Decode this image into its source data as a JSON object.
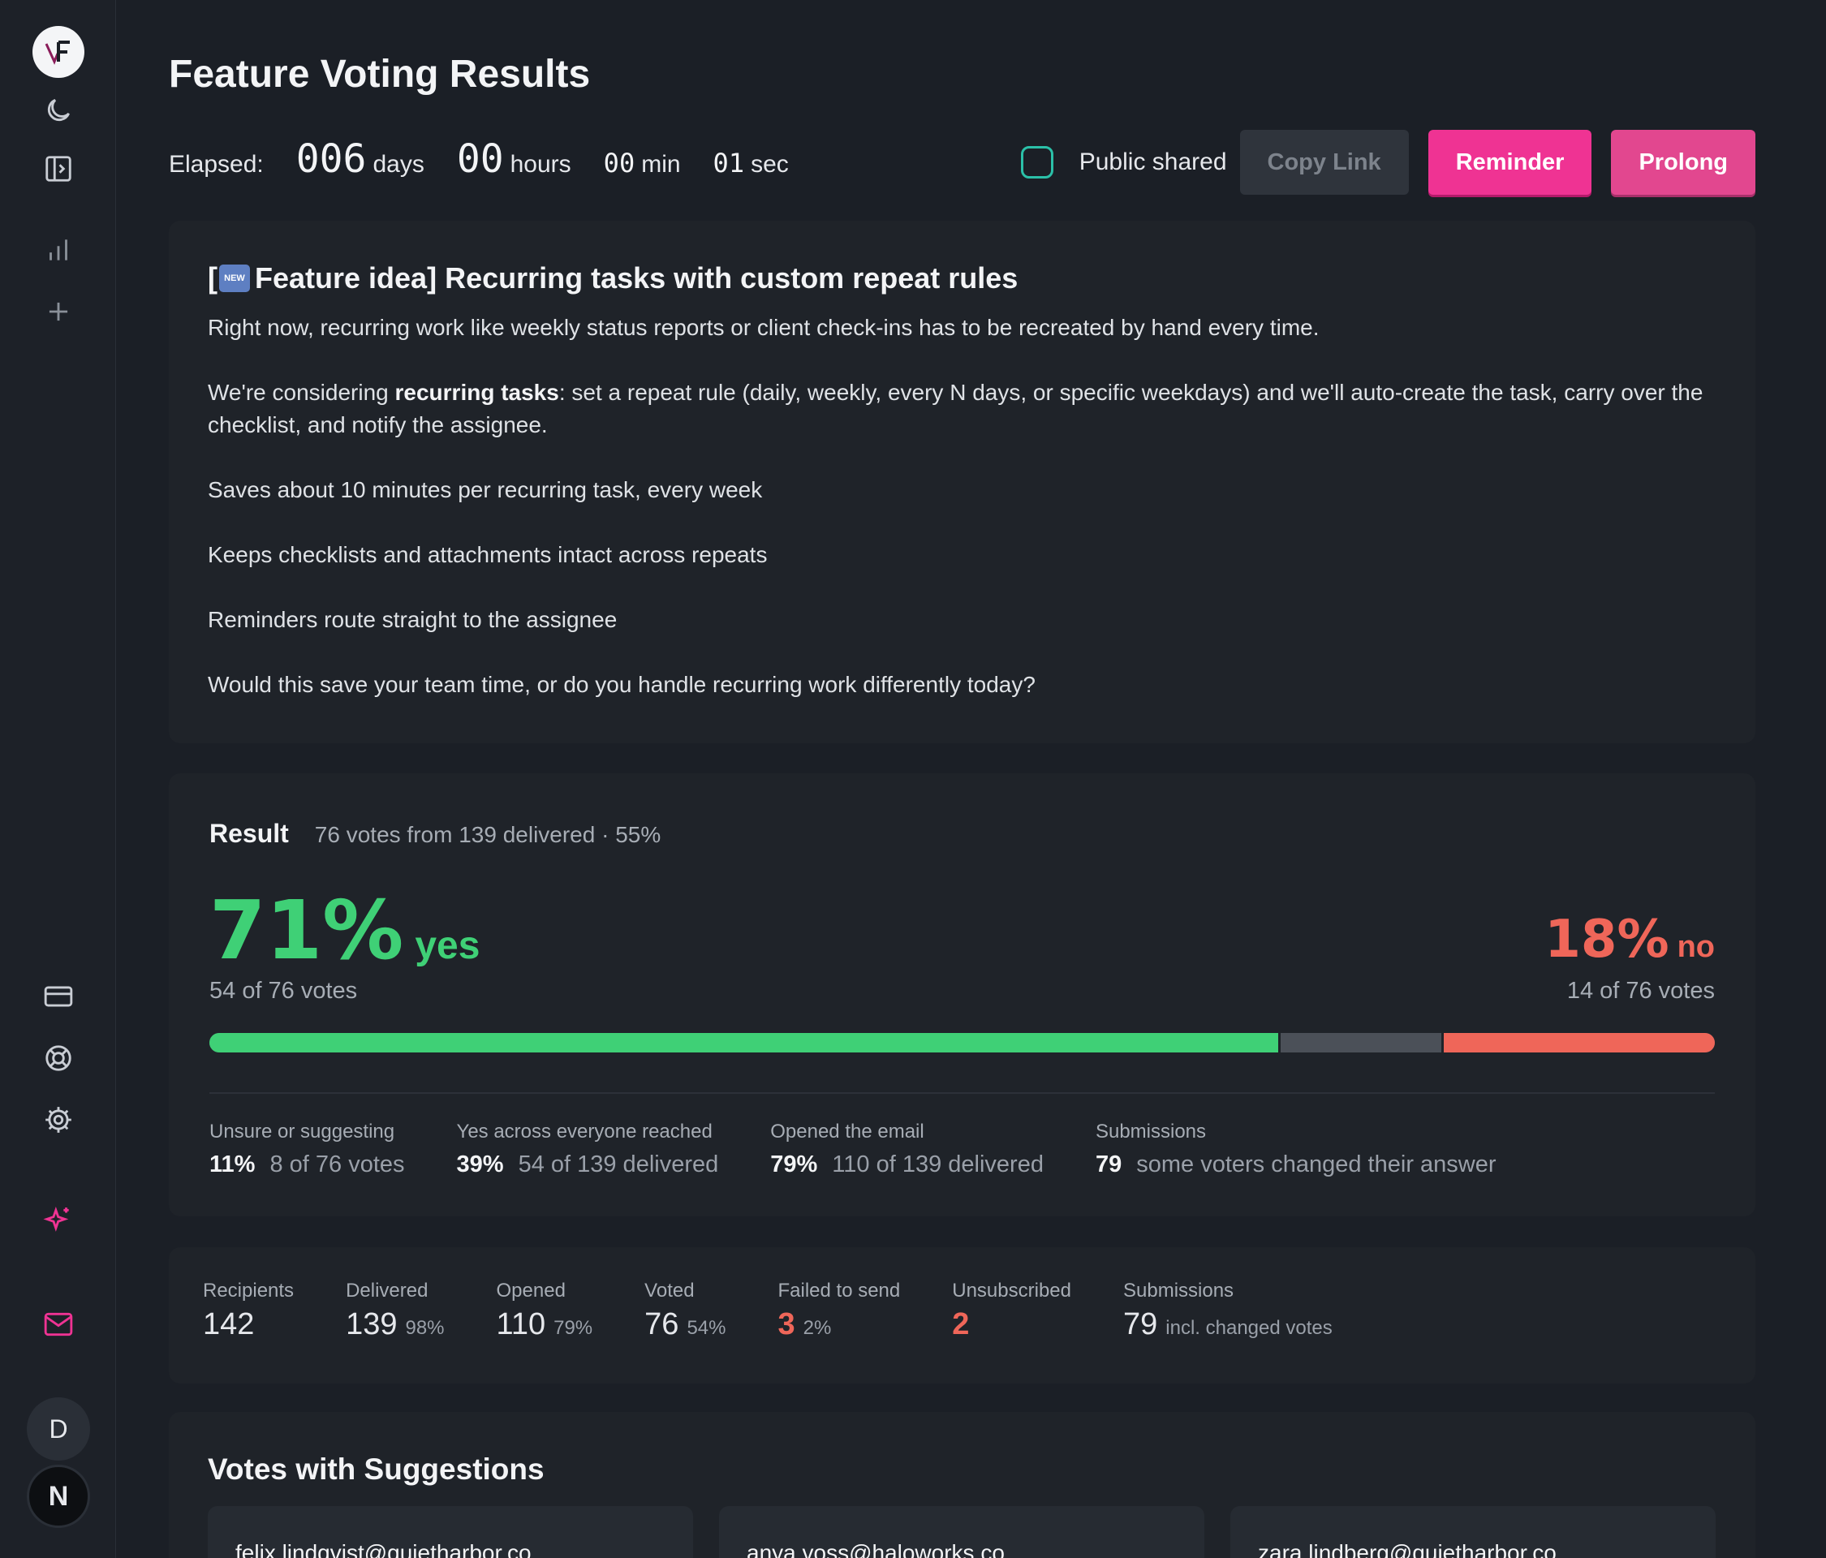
{
  "page": {
    "title": "Feature Voting Results"
  },
  "elapsed": {
    "label": "Elapsed:",
    "days": "006",
    "days_unit": "days",
    "hours": "00",
    "hours_unit": "hours",
    "min": "00",
    "min_unit": "min",
    "sec": "01",
    "sec_unit": "sec"
  },
  "controls": {
    "public_shared_label": "Public shared",
    "copy_link": "Copy Link",
    "reminder": "Reminder",
    "prolong": "Prolong"
  },
  "idea": {
    "title_prefix": "[",
    "badge": "NEW",
    "title": " Feature idea] Recurring tasks with custom repeat rules",
    "p1": "Right now, recurring work like weekly status reports or client check-ins has to be recreated by hand every time.",
    "p2_pre": "We're considering ",
    "p2_bold": "recurring tasks",
    "p2_post": ": set a repeat rule (daily, weekly, every N days, or specific weekdays) and we'll auto-create the task, carry over the checklist, and notify the assignee.",
    "p3": "Saves about 10 minutes per recurring task, every week",
    "p4": "Keeps checklists and attachments intact across repeats",
    "p5": "Reminders route straight to the assignee",
    "p6": "Would this save your team time, or do you handle recurring work differently today?"
  },
  "result": {
    "title": "Result",
    "summary": "76 votes from 139 delivered · 55%",
    "yes_pct": "71%",
    "yes_word": "yes",
    "yes_sub": "54 of 76 votes",
    "no_pct": "18%",
    "no_word": "no",
    "no_sub": "14 of 76 votes",
    "bar": {
      "yes": 71,
      "unsure": 11,
      "no": 18
    },
    "mini": [
      {
        "label": "Unsure or suggesting",
        "value": "11%",
        "detail": "8 of 76 votes"
      },
      {
        "label": "Yes across everyone reached",
        "value": "39%",
        "detail": "54 of 139 delivered"
      },
      {
        "label": "Opened the email",
        "value": "79%",
        "detail": "110 of 139 delivered"
      },
      {
        "label": "Submissions",
        "value": "79",
        "detail": "some voters changed their answer"
      }
    ]
  },
  "stats": [
    {
      "label": "Recipients",
      "value": "142",
      "pct": ""
    },
    {
      "label": "Delivered",
      "value": "139",
      "pct": "98%"
    },
    {
      "label": "Opened",
      "value": "110",
      "pct": "79%"
    },
    {
      "label": "Voted",
      "value": "76",
      "pct": "54%"
    },
    {
      "label": "Failed to send",
      "value": "3",
      "pct": "2%"
    },
    {
      "label": "Unsubscribed",
      "value": "2",
      "pct": ""
    },
    {
      "label": "Submissions",
      "value": "79",
      "pct": "incl. changed votes"
    }
  ],
  "suggestions": {
    "title": "Votes with Suggestions",
    "items": [
      "felix.lindqvist@quietharbor.co",
      "anya.voss@haloworks.co",
      "zara.lindberg@quietharbor.co"
    ]
  },
  "sidebar": {
    "avatar_d": "D",
    "avatar_n": "N"
  },
  "colors": {
    "accent": "#ef3393",
    "yes": "#3fd076",
    "no": "#ef6659",
    "toggle": "#2bc0a8"
  }
}
